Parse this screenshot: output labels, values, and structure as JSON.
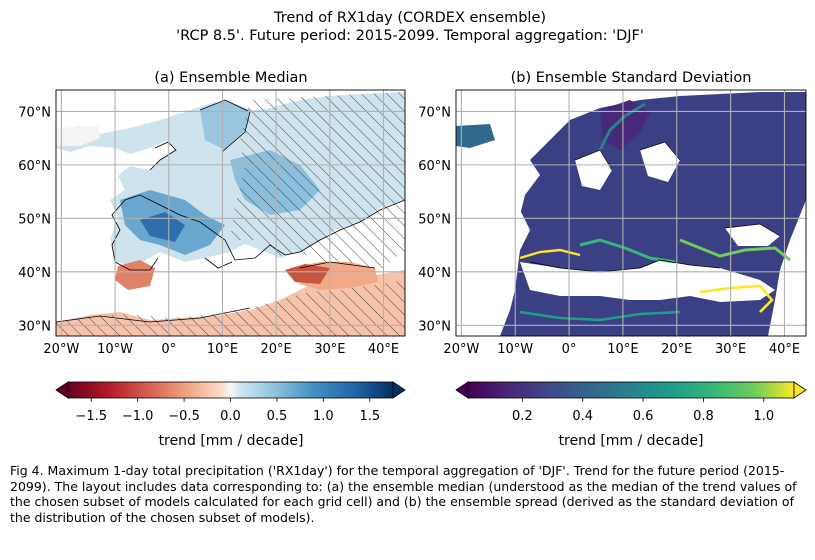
{
  "figure": {
    "suptitle_line1": "Trend of RX1day (CORDEX ensemble)",
    "suptitle_line2": "'RCP 8.5'. Future period: 2015-2099. Temporal aggregation: 'DJF'",
    "caption": "Fig 4. Maximum 1-day total precipitation ('RX1day') for the temporal aggregation of 'DJF'. Trend for the future period (2015-2099). The layout includes data corresponding to: (a) the ensemble median (understood as the median of the trend values of the chosen subset of models calculated for each grid cell) and (b) the ensemble spread (derived as the standard deviation of the distribution of the chosen subset of models)."
  },
  "chart_data": [
    {
      "type": "heatmap",
      "title": "(a) Ensemble Median",
      "x_tick_labels": [
        "20°W",
        "10°W",
        "0°",
        "10°E",
        "20°E",
        "30°E",
        "40°E"
      ],
      "y_tick_labels": [
        "30°N",
        "40°N",
        "50°N",
        "60°N",
        "70°N"
      ],
      "x_ticks": [
        -20,
        -10,
        0,
        10,
        20,
        30,
        40
      ],
      "y_ticks": [
        30,
        40,
        50,
        60,
        70
      ],
      "xlim": [
        -21,
        44
      ],
      "ylim": [
        28,
        74
      ],
      "grid": true,
      "hatching": "regions without model agreement",
      "colormap": "RdBu",
      "colorbar": {
        "label": "trend [mm / decade]",
        "range": [
          -1.75,
          1.75
        ],
        "ticks": [
          -1.5,
          -1.0,
          -0.5,
          0.0,
          0.5,
          1.0,
          1.5
        ],
        "tick_labels": [
          "−1.5",
          "−1.0",
          "−0.5",
          "0.0",
          "0.5",
          "1.0",
          "1.5"
        ],
        "extend": "both"
      }
    },
    {
      "type": "heatmap",
      "title": "(b) Ensemble Standard Deviation",
      "x_tick_labels": [
        "20°W",
        "10°W",
        "0°",
        "10°E",
        "20°E",
        "30°E",
        "40°E"
      ],
      "y_tick_labels": [
        "30°N",
        "40°N",
        "50°N",
        "60°N",
        "70°N"
      ],
      "x_ticks": [
        -20,
        -10,
        0,
        10,
        20,
        30,
        40
      ],
      "y_ticks": [
        30,
        40,
        50,
        60,
        70
      ],
      "xlim": [
        -21,
        44
      ],
      "ylim": [
        28,
        74
      ],
      "grid": true,
      "colormap": "viridis",
      "colorbar": {
        "label": "trend [mm / decade]",
        "range": [
          0.02,
          1.1
        ],
        "ticks": [
          0.2,
          0.4,
          0.6,
          0.8,
          1.0
        ],
        "tick_labels": [
          "0.2",
          "0.4",
          "0.6",
          "0.8",
          "1.0"
        ],
        "extend": "both"
      }
    }
  ]
}
